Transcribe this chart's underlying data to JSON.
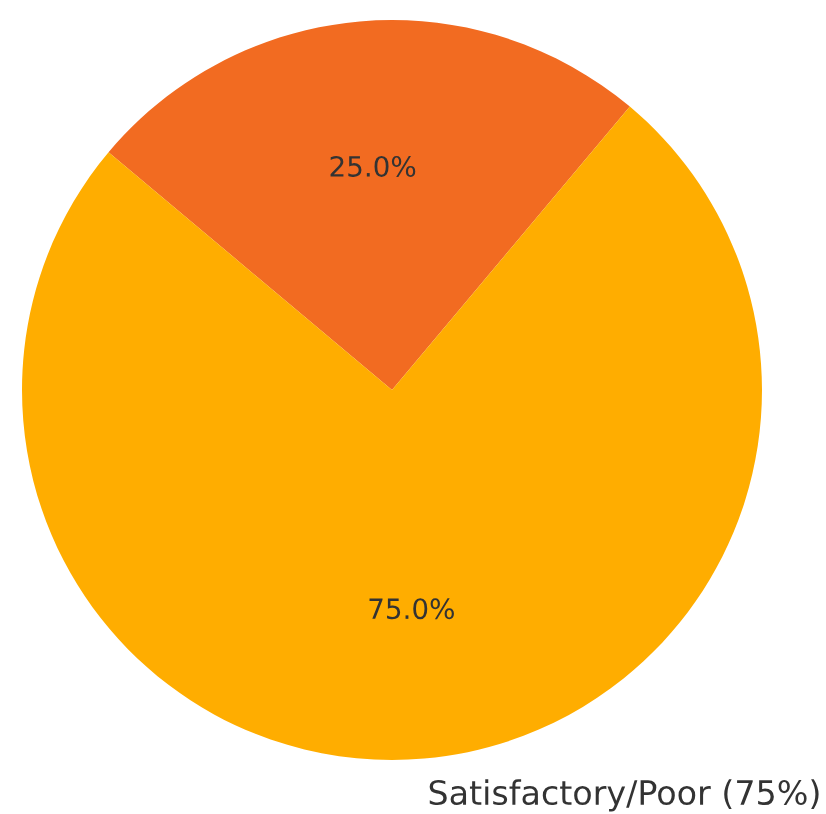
{
  "chart_data": {
    "type": "pie",
    "categories": [
      null,
      "Satisfactory/Poor (75%)"
    ],
    "values": [
      25,
      75
    ],
    "colors": [
      "#f26b21",
      "#ffad00"
    ],
    "value_labels": [
      "25.0%",
      "75.0%"
    ]
  }
}
